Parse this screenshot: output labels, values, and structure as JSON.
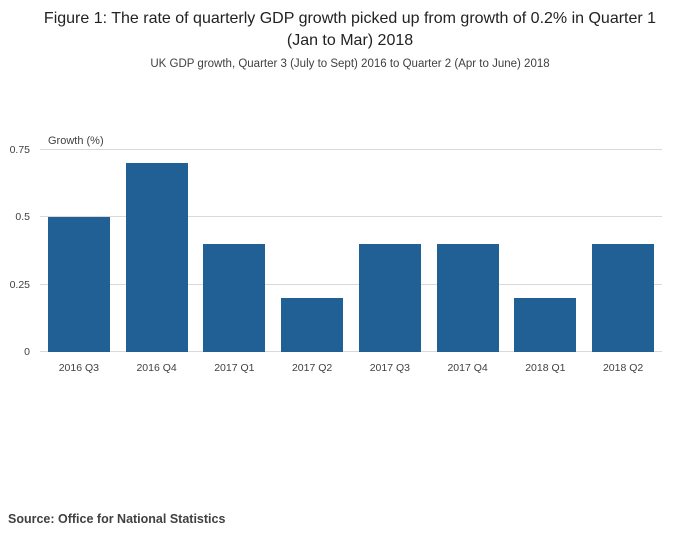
{
  "title": "Figure 1: The rate of quarterly GDP growth picked up from growth of 0.2% in Quarter 1 (Jan to Mar) 2018",
  "subtitle": "UK GDP growth, Quarter 3 (July to Sept) 2016 to Quarter 2 (Apr to June) 2018",
  "source": "Source: Office for National Statistics",
  "colors": {
    "bar": "#206095",
    "gridline": "#d9d9d9",
    "text": "#414042"
  },
  "chart_data": {
    "type": "bar",
    "title": "Figure 1: The rate of quarterly GDP growth picked up from growth of 0.2% in Quarter 1 (Jan to Mar) 2018",
    "subtitle": "UK GDP growth, Quarter 3 (July to Sept) 2016 to Quarter 2 (Apr to June) 2018",
    "categories": [
      "2016 Q3",
      "2016 Q4",
      "2017 Q1",
      "2017 Q2",
      "2017 Q3",
      "2017 Q4",
      "2018 Q1",
      "2018 Q2"
    ],
    "values": [
      0.5,
      0.7,
      0.4,
      0.2,
      0.4,
      0.4,
      0.2,
      0.4
    ],
    "xlabel": "",
    "ylabel": "Growth (%)",
    "ylim": [
      0,
      0.75
    ],
    "yticks": [
      0,
      0.25,
      0.5,
      0.75
    ],
    "grid": true,
    "legend": false
  }
}
